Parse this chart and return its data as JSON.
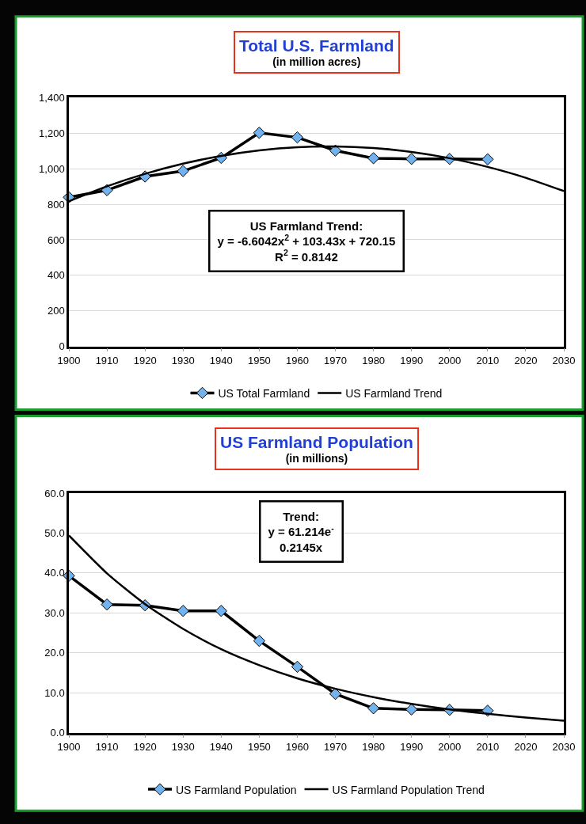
{
  "chart_data": [
    {
      "type": "line",
      "title": "Total U.S. Farmland",
      "subtitle": "(in million acres)",
      "x": [
        1900,
        1910,
        1920,
        1930,
        1940,
        1950,
        1960,
        1970,
        1980,
        1990,
        2000,
        2010
      ],
      "series": [
        {
          "name": "US Total Farmland",
          "color": "#72b3ee",
          "marker": "diamond",
          "values": [
            839,
            879,
            956,
            987,
            1061,
            1202,
            1176,
            1102,
            1059,
            1055,
            1055,
            1053
          ]
        },
        {
          "name": "US Farmland Trend",
          "color": "#000000",
          "marker": "none",
          "x": [
            1900,
            1910,
            1920,
            1930,
            1940,
            1950,
            1960,
            1970,
            1980,
            1990,
            2000,
            2010,
            2020,
            2030
          ],
          "values": [
            817,
            901,
            971,
            1028,
            1072,
            1103,
            1121,
            1125,
            1116,
            1094,
            1059,
            1010,
            949,
            874
          ]
        }
      ],
      "xlim": [
        1900,
        2030
      ],
      "xticks": [
        1900,
        1910,
        1920,
        1930,
        1940,
        1950,
        1960,
        1970,
        1980,
        1990,
        2000,
        2010,
        2020,
        2030
      ],
      "ylim": [
        0,
        1400
      ],
      "yticks": [
        0,
        200,
        400,
        600,
        800,
        {
          "value": 1000,
          "label": "1,000"
        },
        {
          "value": 1200,
          "label": "1,200"
        },
        {
          "value": 1400,
          "label": "1,400"
        }
      ],
      "grid": "y",
      "legend": "bottom",
      "annotations": [
        "US Farmland Trend:\ny = -6.6042x$^{2}$ + 103.43x + 720.15\nR$^{2}$ = 0.8142"
      ]
    },
    {
      "type": "line",
      "title": "US Farmland Population",
      "subtitle": "(in millions)",
      "x": [
        1900,
        1910,
        1920,
        1930,
        1940,
        1950,
        1960,
        1970,
        1980,
        1990,
        2000,
        2010
      ],
      "series": [
        {
          "name": "US Farmland Population",
          "color": "#72b3ee",
          "marker": "diamond",
          "values": [
            39.3,
            32.1,
            31.9,
            30.5,
            30.5,
            23.0,
            16.5,
            9.7,
            6.1,
            5.8,
            5.7,
            5.5
          ]
        },
        {
          "name": "US Farmland Population Trend",
          "color": "#000000",
          "marker": "none",
          "x": [
            1900,
            1910,
            1920,
            1930,
            1940,
            1950,
            1960,
            1970,
            1980,
            1990,
            2000,
            2010,
            2020,
            2030
          ],
          "values": [
            49.4,
            39.9,
            32.2,
            26.0,
            20.9,
            16.9,
            13.6,
            11.0,
            8.9,
            7.2,
            5.8,
            4.7,
            3.8,
            3.0
          ]
        }
      ],
      "xlim": [
        1900,
        2030
      ],
      "xticks": [
        1900,
        1910,
        1920,
        1930,
        1940,
        1950,
        1960,
        1970,
        1980,
        1990,
        2000,
        2010,
        2020,
        2030
      ],
      "ylim": [
        0,
        60
      ],
      "yticks": [
        {
          "value": 0,
          "label": "0.0"
        },
        {
          "value": 10,
          "label": "10.0"
        },
        {
          "value": 20,
          "label": "20.0"
        },
        {
          "value": 30,
          "label": "30.0"
        },
        {
          "value": 40,
          "label": "40.0"
        },
        {
          "value": 50,
          "label": "50.0"
        },
        {
          "value": 60,
          "label": "60.0"
        }
      ],
      "grid": "y",
      "legend": "bottom",
      "annotations": [
        "Trend:\ny = 61.214e$^{-}$\n0.2145x"
      ]
    }
  ]
}
